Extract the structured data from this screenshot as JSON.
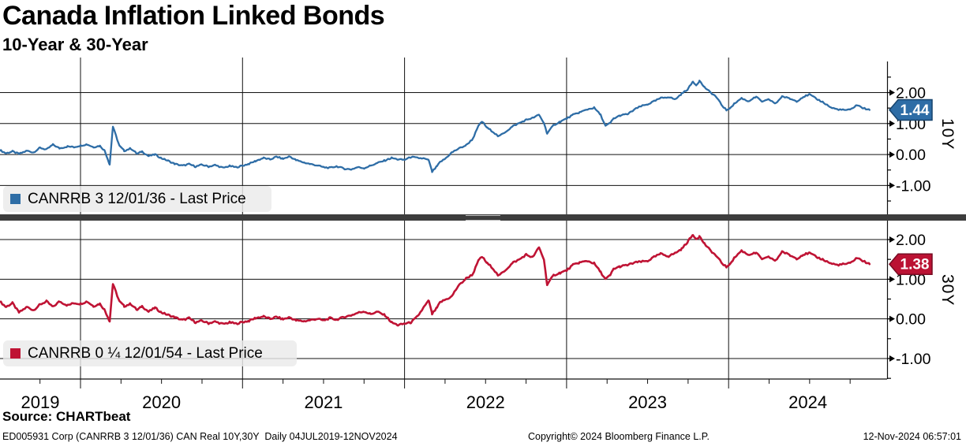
{
  "chart_data": {
    "type": "line",
    "title": "Canada Inflation Linked Bonds",
    "subtitle": "10-Year & 30-Year",
    "grid": true,
    "legend_position": "inside-bottom-left",
    "x_axis": {
      "year_labels": [
        "2019",
        "2020",
        "2021",
        "2022",
        "2023",
        "2024"
      ],
      "start_year_frac": 2019.5,
      "end_year_frac": 2024.87
    },
    "panels": [
      {
        "id": "10Y",
        "axis_title": "10Y",
        "legend": "CANRRB 3 12/01/36 - Last Price",
        "last_price": "1.44",
        "line_color": "#2e6da6",
        "tag_fill": "#2e6da6",
        "tag_border": "#16436d",
        "y_major": [
          {
            "label": "2.00",
            "value": 2
          },
          {
            "label": "1.00",
            "value": 1
          },
          {
            "label": "0.00",
            "value": 0
          },
          {
            "label": "-1.00",
            "value": -1
          }
        ],
        "y_minor": [
          2.5,
          1.5,
          0.5,
          -0.5,
          -1.5
        ],
        "points": [
          [
            2019.5,
            0.15
          ],
          [
            2019.54,
            0.04
          ],
          [
            2019.58,
            0.1
          ],
          [
            2019.62,
            0.02
          ],
          [
            2019.67,
            0.12
          ],
          [
            2019.71,
            0.07
          ],
          [
            2019.75,
            0.22
          ],
          [
            2019.79,
            0.16
          ],
          [
            2019.83,
            0.32
          ],
          [
            2019.87,
            0.2
          ],
          [
            2019.92,
            0.26
          ],
          [
            2019.96,
            0.24
          ],
          [
            2020.0,
            0.29
          ],
          [
            2020.04,
            0.33
          ],
          [
            2020.08,
            0.24
          ],
          [
            2020.12,
            0.28
          ],
          [
            2020.15,
            0.12
          ],
          [
            2020.18,
            -0.32
          ],
          [
            2020.2,
            0.9
          ],
          [
            2020.24,
            0.28
          ],
          [
            2020.27,
            0.12
          ],
          [
            2020.31,
            0.2
          ],
          [
            2020.35,
            0.02
          ],
          [
            2020.38,
            0.1
          ],
          [
            2020.42,
            -0.05
          ],
          [
            2020.46,
            0.0
          ],
          [
            2020.5,
            -0.12
          ],
          [
            2020.54,
            -0.2
          ],
          [
            2020.58,
            -0.3
          ],
          [
            2020.63,
            -0.36
          ],
          [
            2020.67,
            -0.31
          ],
          [
            2020.71,
            -0.39
          ],
          [
            2020.75,
            -0.33
          ],
          [
            2020.79,
            -0.39
          ],
          [
            2020.83,
            -0.34
          ],
          [
            2020.88,
            -0.43
          ],
          [
            2020.92,
            -0.37
          ],
          [
            2020.96,
            -0.41
          ],
          [
            2021.0,
            -0.36
          ],
          [
            2021.04,
            -0.3
          ],
          [
            2021.08,
            -0.21
          ],
          [
            2021.13,
            -0.11
          ],
          [
            2021.17,
            -0.16
          ],
          [
            2021.21,
            -0.07
          ],
          [
            2021.25,
            -0.14
          ],
          [
            2021.29,
            -0.06
          ],
          [
            2021.33,
            -0.18
          ],
          [
            2021.38,
            -0.26
          ],
          [
            2021.42,
            -0.31
          ],
          [
            2021.46,
            -0.35
          ],
          [
            2021.5,
            -0.41
          ],
          [
            2021.54,
            -0.43
          ],
          [
            2021.58,
            -0.38
          ],
          [
            2021.63,
            -0.46
          ],
          [
            2021.67,
            -0.48
          ],
          [
            2021.71,
            -0.41
          ],
          [
            2021.75,
            -0.44
          ],
          [
            2021.79,
            -0.36
          ],
          [
            2021.83,
            -0.28
          ],
          [
            2021.88,
            -0.19
          ],
          [
            2021.92,
            -0.11
          ],
          [
            2021.96,
            -0.16
          ],
          [
            2022.0,
            -0.17
          ],
          [
            2022.04,
            -0.08
          ],
          [
            2022.08,
            -0.11
          ],
          [
            2022.12,
            -0.13
          ],
          [
            2022.15,
            -0.19
          ],
          [
            2022.17,
            -0.56
          ],
          [
            2022.2,
            -0.38
          ],
          [
            2022.22,
            -0.24
          ],
          [
            2022.25,
            -0.14
          ],
          [
            2022.29,
            0.06
          ],
          [
            2022.33,
            0.18
          ],
          [
            2022.38,
            0.3
          ],
          [
            2022.42,
            0.5
          ],
          [
            2022.46,
            0.96
          ],
          [
            2022.48,
            1.06
          ],
          [
            2022.51,
            0.86
          ],
          [
            2022.54,
            0.76
          ],
          [
            2022.58,
            0.58
          ],
          [
            2022.63,
            0.76
          ],
          [
            2022.67,
            0.92
          ],
          [
            2022.71,
            1.02
          ],
          [
            2022.75,
            1.12
          ],
          [
            2022.79,
            1.18
          ],
          [
            2022.83,
            1.28
          ],
          [
            2022.86,
            1.02
          ],
          [
            2022.88,
            0.68
          ],
          [
            2022.92,
            0.95
          ],
          [
            2022.96,
            1.06
          ],
          [
            2023.0,
            1.16
          ],
          [
            2023.04,
            1.28
          ],
          [
            2023.08,
            1.36
          ],
          [
            2023.13,
            1.46
          ],
          [
            2023.17,
            1.51
          ],
          [
            2023.21,
            1.28
          ],
          [
            2023.24,
            0.92
          ],
          [
            2023.27,
            1.02
          ],
          [
            2023.29,
            1.16
          ],
          [
            2023.33,
            1.26
          ],
          [
            2023.38,
            1.31
          ],
          [
            2023.42,
            1.46
          ],
          [
            2023.46,
            1.56
          ],
          [
            2023.5,
            1.62
          ],
          [
            2023.54,
            1.72
          ],
          [
            2023.58,
            1.82
          ],
          [
            2023.63,
            1.86
          ],
          [
            2023.67,
            1.78
          ],
          [
            2023.71,
            1.96
          ],
          [
            2023.75,
            2.12
          ],
          [
            2023.78,
            2.36
          ],
          [
            2023.8,
            2.24
          ],
          [
            2023.82,
            2.38
          ],
          [
            2023.85,
            2.18
          ],
          [
            2023.88,
            2.04
          ],
          [
            2023.92,
            1.88
          ],
          [
            2023.96,
            1.58
          ],
          [
            2023.99,
            1.42
          ],
          [
            2024.04,
            1.66
          ],
          [
            2024.08,
            1.82
          ],
          [
            2024.12,
            1.72
          ],
          [
            2024.17,
            1.86
          ],
          [
            2024.21,
            1.7
          ],
          [
            2024.25,
            1.78
          ],
          [
            2024.29,
            1.64
          ],
          [
            2024.33,
            1.88
          ],
          [
            2024.38,
            1.8
          ],
          [
            2024.42,
            1.72
          ],
          [
            2024.46,
            1.86
          ],
          [
            2024.5,
            1.94
          ],
          [
            2024.54,
            1.8
          ],
          [
            2024.58,
            1.7
          ],
          [
            2024.63,
            1.52
          ],
          [
            2024.67,
            1.46
          ],
          [
            2024.71,
            1.44
          ],
          [
            2024.75,
            1.44
          ],
          [
            2024.79,
            1.6
          ],
          [
            2024.83,
            1.5
          ],
          [
            2024.87,
            1.44
          ]
        ]
      },
      {
        "id": "30Y",
        "axis_title": "30Y",
        "legend": "CANRRB 0 ¼ 12/01/54 - Last Price",
        "last_price": "1.38",
        "line_color": "#bf1334",
        "tag_fill": "#bb1233",
        "tag_border": "#770b22",
        "y_major": [
          {
            "label": "2.00",
            "value": 2
          },
          {
            "label": "1.00",
            "value": 1
          },
          {
            "label": "0.00",
            "value": 0
          },
          {
            "label": "-1.00",
            "value": -1
          }
        ],
        "y_minor": [
          1.5,
          0.5,
          -0.5,
          -1.5
        ],
        "points": [
          [
            2019.5,
            0.45
          ],
          [
            2019.54,
            0.3
          ],
          [
            2019.58,
            0.4
          ],
          [
            2019.62,
            0.16
          ],
          [
            2019.67,
            0.3
          ],
          [
            2019.71,
            0.22
          ],
          [
            2019.75,
            0.36
          ],
          [
            2019.79,
            0.44
          ],
          [
            2019.83,
            0.3
          ],
          [
            2019.87,
            0.44
          ],
          [
            2019.92,
            0.34
          ],
          [
            2019.96,
            0.4
          ],
          [
            2020.0,
            0.38
          ],
          [
            2020.04,
            0.44
          ],
          [
            2020.08,
            0.32
          ],
          [
            2020.12,
            0.38
          ],
          [
            2020.15,
            0.22
          ],
          [
            2020.18,
            -0.06
          ],
          [
            2020.2,
            0.88
          ],
          [
            2020.24,
            0.44
          ],
          [
            2020.27,
            0.32
          ],
          [
            2020.31,
            0.38
          ],
          [
            2020.35,
            0.22
          ],
          [
            2020.38,
            0.32
          ],
          [
            2020.42,
            0.18
          ],
          [
            2020.46,
            0.28
          ],
          [
            2020.5,
            0.16
          ],
          [
            2020.54,
            0.1
          ],
          [
            2020.58,
            0.04
          ],
          [
            2020.63,
            -0.03
          ],
          [
            2020.67,
            0.02
          ],
          [
            2020.71,
            -0.09
          ],
          [
            2020.75,
            -0.05
          ],
          [
            2020.79,
            -0.11
          ],
          [
            2020.83,
            -0.07
          ],
          [
            2020.88,
            -0.13
          ],
          [
            2020.92,
            -0.09
          ],
          [
            2020.96,
            -0.12
          ],
          [
            2021.0,
            -0.08
          ],
          [
            2021.04,
            -0.05
          ],
          [
            2021.08,
            0.02
          ],
          [
            2021.13,
            0.06
          ],
          [
            2021.17,
            0.0
          ],
          [
            2021.21,
            0.05
          ],
          [
            2021.25,
            -0.01
          ],
          [
            2021.29,
            0.04
          ],
          [
            2021.33,
            -0.04
          ],
          [
            2021.38,
            -0.06
          ],
          [
            2021.42,
            -0.03
          ],
          [
            2021.46,
            0.0
          ],
          [
            2021.5,
            -0.04
          ],
          [
            2021.54,
            0.02
          ],
          [
            2021.58,
            -0.02
          ],
          [
            2021.63,
            0.05
          ],
          [
            2021.67,
            0.09
          ],
          [
            2021.71,
            0.15
          ],
          [
            2021.75,
            0.19
          ],
          [
            2021.79,
            0.12
          ],
          [
            2021.83,
            0.18
          ],
          [
            2021.88,
            0.09
          ],
          [
            2021.92,
            -0.09
          ],
          [
            2021.96,
            -0.16
          ],
          [
            2022.0,
            -0.12
          ],
          [
            2022.04,
            -0.09
          ],
          [
            2022.08,
            0.06
          ],
          [
            2022.12,
            0.3
          ],
          [
            2022.15,
            0.46
          ],
          [
            2022.17,
            0.12
          ],
          [
            2022.2,
            0.28
          ],
          [
            2022.22,
            0.42
          ],
          [
            2022.25,
            0.48
          ],
          [
            2022.29,
            0.56
          ],
          [
            2022.33,
            0.82
          ],
          [
            2022.38,
            1.02
          ],
          [
            2022.42,
            1.12
          ],
          [
            2022.46,
            1.5
          ],
          [
            2022.48,
            1.56
          ],
          [
            2022.51,
            1.4
          ],
          [
            2022.54,
            1.3
          ],
          [
            2022.58,
            1.08
          ],
          [
            2022.63,
            1.26
          ],
          [
            2022.67,
            1.42
          ],
          [
            2022.71,
            1.5
          ],
          [
            2022.75,
            1.62
          ],
          [
            2022.79,
            1.55
          ],
          [
            2022.83,
            1.8
          ],
          [
            2022.86,
            1.5
          ],
          [
            2022.88,
            0.86
          ],
          [
            2022.92,
            1.1
          ],
          [
            2022.96,
            1.16
          ],
          [
            2023.0,
            1.22
          ],
          [
            2023.04,
            1.36
          ],
          [
            2023.08,
            1.42
          ],
          [
            2023.13,
            1.46
          ],
          [
            2023.17,
            1.4
          ],
          [
            2023.21,
            1.18
          ],
          [
            2023.24,
            1.0
          ],
          [
            2023.27,
            1.1
          ],
          [
            2023.29,
            1.26
          ],
          [
            2023.33,
            1.32
          ],
          [
            2023.38,
            1.36
          ],
          [
            2023.42,
            1.42
          ],
          [
            2023.46,
            1.44
          ],
          [
            2023.5,
            1.46
          ],
          [
            2023.54,
            1.56
          ],
          [
            2023.58,
            1.64
          ],
          [
            2023.63,
            1.58
          ],
          [
            2023.67,
            1.66
          ],
          [
            2023.71,
            1.76
          ],
          [
            2023.75,
            1.96
          ],
          [
            2023.78,
            2.12
          ],
          [
            2023.8,
            2.02
          ],
          [
            2023.82,
            2.08
          ],
          [
            2023.85,
            1.9
          ],
          [
            2023.88,
            1.76
          ],
          [
            2023.92,
            1.6
          ],
          [
            2023.96,
            1.4
          ],
          [
            2023.99,
            1.3
          ],
          [
            2024.04,
            1.56
          ],
          [
            2024.08,
            1.72
          ],
          [
            2024.12,
            1.62
          ],
          [
            2024.17,
            1.66
          ],
          [
            2024.21,
            1.5
          ],
          [
            2024.25,
            1.56
          ],
          [
            2024.29,
            1.46
          ],
          [
            2024.33,
            1.7
          ],
          [
            2024.38,
            1.6
          ],
          [
            2024.42,
            1.52
          ],
          [
            2024.46,
            1.62
          ],
          [
            2024.5,
            1.66
          ],
          [
            2024.54,
            1.56
          ],
          [
            2024.58,
            1.5
          ],
          [
            2024.63,
            1.4
          ],
          [
            2024.67,
            1.36
          ],
          [
            2024.71,
            1.38
          ],
          [
            2024.75,
            1.4
          ],
          [
            2024.79,
            1.54
          ],
          [
            2024.83,
            1.46
          ],
          [
            2024.87,
            1.38
          ]
        ]
      }
    ]
  },
  "footer": {
    "source": "Source: CHARTbeat",
    "description": "ED005931 Corp (CANRRB 3 12/01/36) CAN Real 10Y,30Y  Daily 04JUL2019-12NOV2024",
    "copyright": "Copyright© 2024 Bloomberg Finance L.P.",
    "timestamp": "12-Nov-2024 06:57:01"
  }
}
